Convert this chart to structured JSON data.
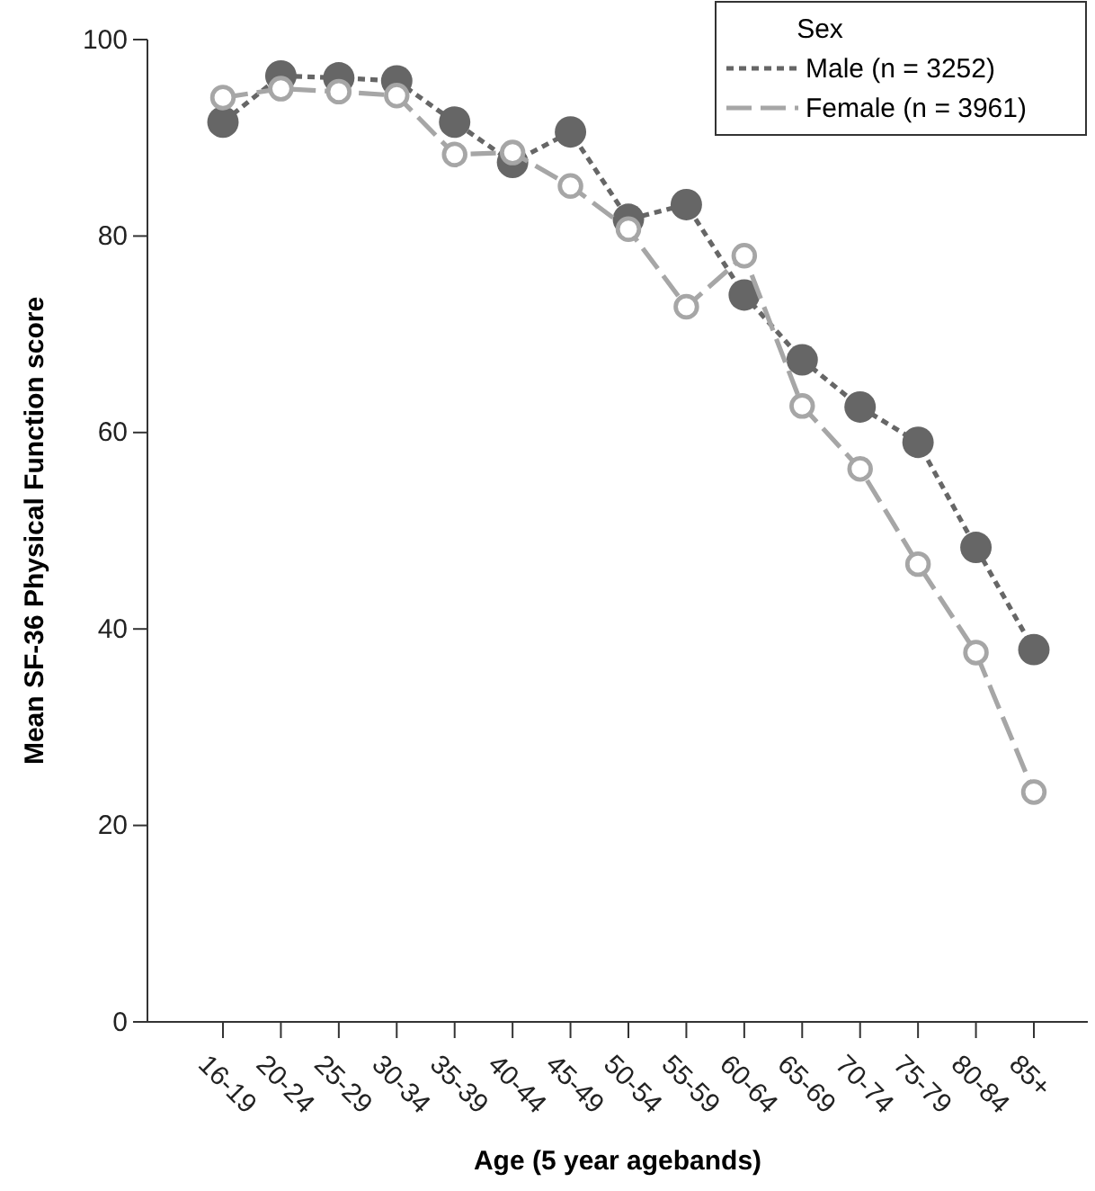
{
  "chart_data": {
    "type": "line",
    "xlabel": "Age (5 year agebands)",
    "ylabel": "Mean SF-36 Physical Function score",
    "legend_title": "Sex",
    "categories": [
      "16-19",
      "20-24",
      "25-29",
      "30-34",
      "35-39",
      "40-44",
      "45-49",
      "50-54",
      "55-59",
      "60-64",
      "65-69",
      "70-74",
      "75-79",
      "80-84",
      "85+"
    ],
    "series": [
      {
        "name": "Male (n = 3252)",
        "color": "#666666",
        "line_style": "dotted",
        "values": [
          91.6,
          96.3,
          96.1,
          95.8,
          91.6,
          87.5,
          90.6,
          81.7,
          83.2,
          74.0,
          67.4,
          62.6,
          59.0,
          48.3,
          37.9
        ]
      },
      {
        "name": "Female (n = 3961)",
        "color": "#a6a6a6",
        "line_style": "dashed",
        "values": [
          94.1,
          95.0,
          94.7,
          94.3,
          88.3,
          88.5,
          85.1,
          80.7,
          72.8,
          78.0,
          62.7,
          56.3,
          46.6,
          37.6,
          23.4
        ]
      }
    ],
    "ylim": [
      0,
      100
    ],
    "yticks": [
      0,
      20,
      40,
      60,
      80,
      100
    ],
    "marker": "circle",
    "legend": "top right",
    "grid": false
  }
}
